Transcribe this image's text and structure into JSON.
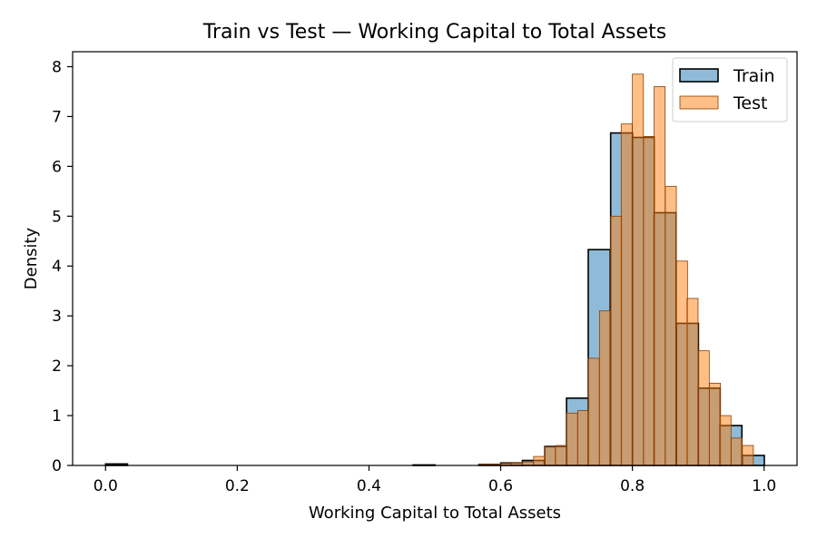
{
  "chart_data": {
    "type": "histogram",
    "title": "Train vs Test —  Working Capital to Total Assets",
    "xlabel": "Working Capital to Total Assets",
    "ylabel": "Density",
    "xlim": [
      -0.05,
      1.05
    ],
    "ylim": [
      0,
      8.3
    ],
    "xticks": [
      0.0,
      0.2,
      0.4,
      0.6,
      0.8,
      1.0
    ],
    "xtick_labels": [
      "0.0",
      "0.2",
      "0.4",
      "0.6",
      "0.8",
      "1.0"
    ],
    "yticks": [
      0,
      1,
      2,
      3,
      4,
      5,
      6,
      7,
      8
    ],
    "ytick_labels": [
      "0",
      "1",
      "2",
      "3",
      "4",
      "5",
      "6",
      "7",
      "8"
    ],
    "grid": false,
    "legend_position": "top-right",
    "series": [
      {
        "name": "Train",
        "color": "#1f77b4",
        "fill_opacity": 0.5,
        "edge_color": "#000000",
        "bin_width": 0.0333,
        "bins_start": [
          0.0,
          0.467,
          0.567,
          0.6,
          0.633,
          0.667,
          0.7,
          0.733,
          0.767,
          0.8,
          0.833,
          0.867,
          0.9,
          0.933,
          0.967
        ],
        "density": [
          0.03,
          0.01,
          0.02,
          0.05,
          0.1,
          0.38,
          1.35,
          4.33,
          6.67,
          6.58,
          5.07,
          2.85,
          1.55,
          0.8,
          0.2
        ]
      },
      {
        "name": "Test",
        "color": "#ff7f0e",
        "fill_opacity": 0.5,
        "edge_color": "#8c3d00",
        "bin_width": 0.0167,
        "bins_start": [
          0.567,
          0.583,
          0.6,
          0.617,
          0.633,
          0.65,
          0.667,
          0.683,
          0.7,
          0.717,
          0.733,
          0.75,
          0.767,
          0.783,
          0.8,
          0.817,
          0.833,
          0.85,
          0.867,
          0.883,
          0.9,
          0.917,
          0.933,
          0.95,
          0.967
        ],
        "density": [
          0.02,
          0.02,
          0.04,
          0.05,
          0.07,
          0.18,
          0.37,
          0.4,
          1.05,
          1.1,
          2.15,
          3.1,
          5.0,
          6.85,
          7.85,
          6.6,
          7.6,
          5.6,
          4.1,
          3.35,
          2.3,
          1.65,
          1.0,
          0.55,
          0.4
        ]
      }
    ]
  }
}
